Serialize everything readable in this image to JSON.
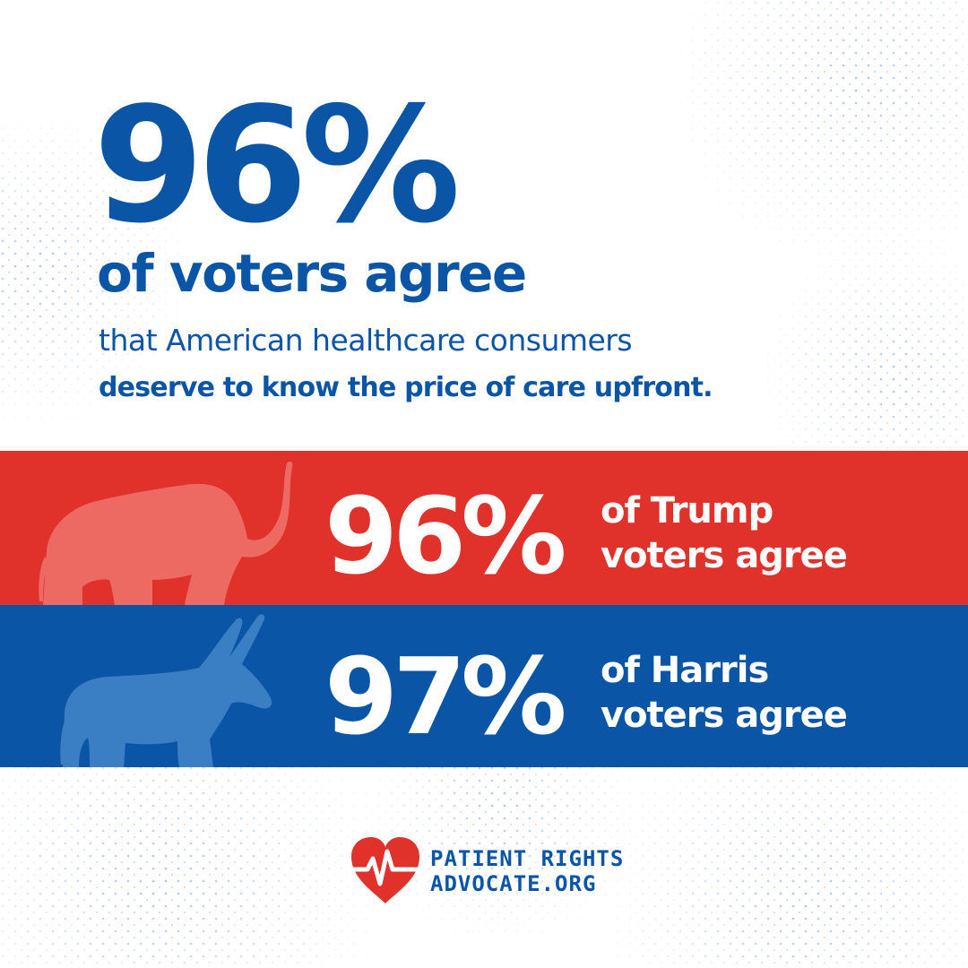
{
  "headline": {
    "stat": "96%",
    "subtitle": "of voters agree",
    "line1": "that American healthcare consumers",
    "line2": "deserve to know the price of care upfront."
  },
  "bands": [
    {
      "stat": "96%",
      "label_line1": "of Trump",
      "label_line2": "voters agree",
      "animal": "elephant-icon",
      "color": "#e0312b"
    },
    {
      "stat": "97%",
      "label_line1": "of Harris",
      "label_line2": "voters agree",
      "animal": "donkey-icon",
      "color": "#0b55a7"
    }
  ],
  "logo": {
    "line1": "PATIENT RIGHTS",
    "line2": "ADVOCATE.ORG",
    "icon": "heart-pulse-icon"
  },
  "colors": {
    "primary_blue": "#0b55a7",
    "republican_red": "#e0312b",
    "white": "#ffffff"
  }
}
